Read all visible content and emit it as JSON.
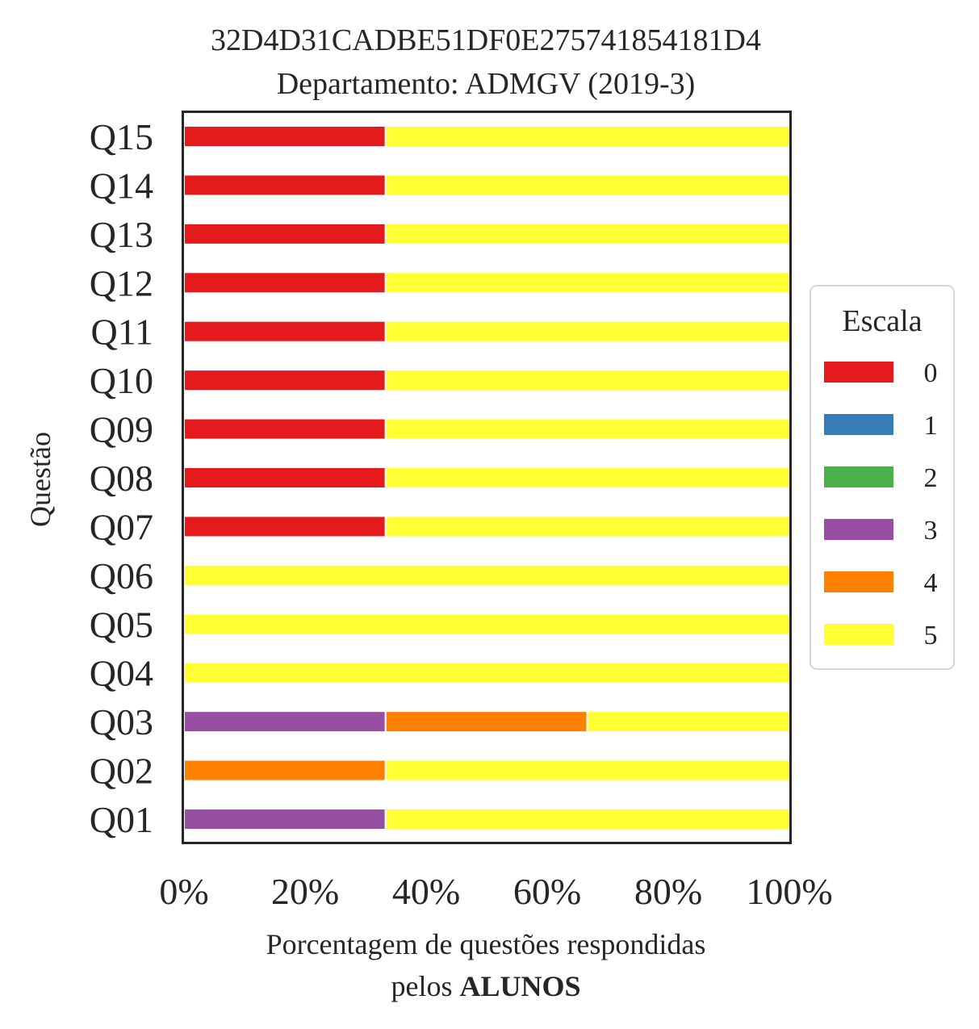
{
  "chart_data": {
    "type": "bar",
    "orientation": "horizontal",
    "stacked": true,
    "title_line1": "32D4D31CADBE51DF0E275741854181D4",
    "title_line2": "Departamento: ADMGV (2019-3)",
    "ylabel": "Questão",
    "xlabel_line1": "Porcentagem de questões respondidas",
    "xlabel_line2_prefix": "pelos ",
    "xlabel_line2_bold": "ALUNOS",
    "xlim": [
      0,
      100
    ],
    "xticks": [
      "0%",
      "20%",
      "40%",
      "60%",
      "80%",
      "100%"
    ],
    "grid": false,
    "categories": [
      "Q01",
      "Q02",
      "Q03",
      "Q04",
      "Q05",
      "Q06",
      "Q07",
      "Q08",
      "Q09",
      "Q10",
      "Q11",
      "Q12",
      "Q13",
      "Q14",
      "Q15"
    ],
    "legend": {
      "title": "Escala",
      "placement": "center-right"
    },
    "series": [
      {
        "name": "0",
        "color": "#e41a1c",
        "values": [
          0,
          0,
          0,
          0,
          0,
          0,
          33.3,
          33.3,
          33.3,
          33.3,
          33.3,
          33.3,
          33.3,
          33.3,
          33.3
        ]
      },
      {
        "name": "1",
        "color": "#377eb8",
        "values": [
          0,
          0,
          0,
          0,
          0,
          0,
          0,
          0,
          0,
          0,
          0,
          0,
          0,
          0,
          0
        ]
      },
      {
        "name": "2",
        "color": "#4daf4a",
        "values": [
          0,
          0,
          0,
          0,
          0,
          0,
          0,
          0,
          0,
          0,
          0,
          0,
          0,
          0,
          0
        ]
      },
      {
        "name": "3",
        "color": "#984ea3",
        "values": [
          33.3,
          0,
          33.3,
          0,
          0,
          0,
          0,
          0,
          0,
          0,
          0,
          0,
          0,
          0,
          0
        ]
      },
      {
        "name": "4",
        "color": "#ff7f00",
        "values": [
          0,
          33.3,
          33.3,
          0,
          0,
          0,
          0,
          0,
          0,
          0,
          0,
          0,
          0,
          0,
          0
        ]
      },
      {
        "name": "5",
        "color": "#ffff33",
        "values": [
          66.7,
          66.7,
          33.4,
          100,
          100,
          100,
          66.7,
          66.7,
          66.7,
          66.7,
          66.7,
          66.7,
          66.7,
          66.7,
          66.7
        ]
      }
    ]
  }
}
